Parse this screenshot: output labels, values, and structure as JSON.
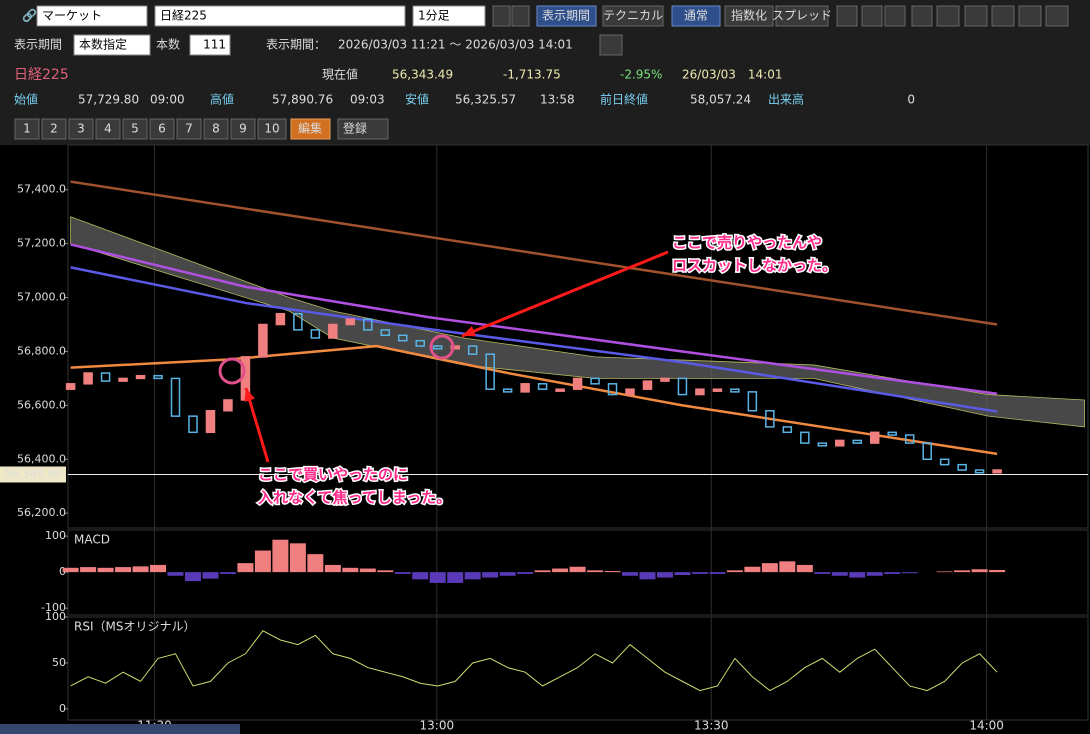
{
  "toolbar": {
    "market": "マーケット",
    "symbol": "日経225",
    "interval": "1分足",
    "buttons": [
      "表示期間",
      "テクニカル",
      "通常",
      "指数化",
      "スプレッド"
    ]
  },
  "period": {
    "label": "表示期間",
    "mode": "本数指定",
    "count_label": "本数",
    "count": 111,
    "range_label": "表示期間：",
    "range": "2026/03/03 11:21 ～ 2026/03/03 14:01"
  },
  "quote": {
    "name": "日経225",
    "current_label": "現在値",
    "current": "56,343.49",
    "change": "-1,713.75",
    "change_pct": "-2.95%",
    "time": "26/03/03　14:01",
    "open_label": "始値",
    "open": "57,729.80",
    "open_time": "09:00",
    "high_label": "高値",
    "high": "57,890.76",
    "high_time": "09:03",
    "low_label": "安値",
    "low": "56,325.57",
    "low_time": "13:58",
    "prev_label": "前日終値",
    "prev": "58,057.24",
    "volume_label": "出来高",
    "volume": "0"
  },
  "tabs": {
    "numbers": [
      "1",
      "2",
      "3",
      "4",
      "5",
      "6",
      "7",
      "8",
      "9",
      "10"
    ],
    "edit": "編集",
    "register": "登録"
  },
  "chart_data": {
    "type": "candlestick",
    "up_color": "#f08080",
    "down_color": "#5ab4e6",
    "x": [
      0,
      2,
      4,
      6,
      8,
      10,
      12,
      14,
      16,
      18,
      20,
      22,
      24,
      26,
      28,
      30,
      32,
      34,
      36,
      38,
      40,
      42,
      44,
      46,
      48,
      50,
      52,
      54,
      56,
      58,
      60,
      62,
      64,
      66,
      68,
      70,
      72,
      74,
      76,
      78,
      80,
      82,
      84,
      86,
      88,
      90,
      92,
      94,
      96,
      98,
      100,
      102,
      104,
      106
    ],
    "open": [
      56660,
      56680,
      56720,
      56690,
      56700,
      56710,
      56700,
      56560,
      56500,
      56580,
      56620,
      56780,
      56900,
      56940,
      56880,
      56850,
      56900,
      56920,
      56880,
      56860,
      56840,
      56820,
      56810,
      56820,
      56790,
      56660,
      56650,
      56680,
      56660,
      56660,
      56700,
      56680,
      56640,
      56660,
      56690,
      56700,
      56640,
      56660,
      56660,
      56650,
      56580,
      56520,
      56500,
      56460,
      56450,
      56470,
      56460,
      56500,
      56490,
      56460,
      56400,
      56380,
      56360,
      56350
    ],
    "close": [
      56680,
      56720,
      56690,
      56700,
      56710,
      56700,
      56560,
      56500,
      56580,
      56620,
      56780,
      56900,
      56940,
      56880,
      56850,
      56900,
      56920,
      56880,
      56860,
      56840,
      56820,
      56810,
      56820,
      56790,
      56660,
      56650,
      56680,
      56660,
      56660,
      56700,
      56680,
      56640,
      56660,
      56690,
      56700,
      56640,
      56660,
      56660,
      56650,
      56580,
      56520,
      56500,
      56460,
      56450,
      56470,
      56460,
      56500,
      56490,
      56460,
      56400,
      56380,
      56360,
      56350,
      56360
    ],
    "xlim": [
      -0.3,
      116.4
    ],
    "xticks": [
      {
        "value": 9.6,
        "label": "11:30"
      },
      {
        "value": 41.9,
        "label": "13:00"
      },
      {
        "value": 73.3,
        "label": "13:30"
      },
      {
        "value": 104.8,
        "label": "14:00"
      }
    ],
    "ylim": [
      56145,
      57566
    ],
    "yticks": [
      {
        "value": 56200,
        "label": "56,200.0"
      },
      {
        "value": 56400,
        "label": "56,400.0"
      },
      {
        "value": 56600,
        "label": "56,600.0"
      },
      {
        "value": 56800,
        "label": "56,800.0"
      },
      {
        "value": 57000,
        "label": "57,000.0"
      },
      {
        "value": 57200,
        "label": "57,200.0"
      },
      {
        "value": 57400,
        "label": "57,400.0"
      }
    ],
    "current_price": {
      "value": 56343.49,
      "label": "56,343.49"
    },
    "cloud": {
      "x": [
        0,
        25,
        30,
        45,
        60,
        85,
        105,
        116
      ],
      "upper": [
        57300,
        57000,
        56950,
        56850,
        56780,
        56750,
        56640,
        56620
      ],
      "lower": [
        57200,
        56950,
        56850,
        56750,
        56700,
        56700,
        56560,
        56520
      ],
      "color": "#666"
    },
    "lines": [
      {
        "color": "#a0522d",
        "x": [
          0,
          106
        ],
        "values": [
          57430,
          56900
        ]
      },
      {
        "color": "#5a5ae6",
        "x": [
          0,
          20,
          41,
          70,
          106
        ],
        "values": [
          57112,
          56980,
          56883,
          56760,
          56577
        ]
      },
      {
        "color": "#b050e0",
        "x": [
          0,
          20,
          41,
          70,
          106
        ],
        "values": [
          57197,
          57040,
          56927,
          56800,
          56643
        ]
      },
      {
        "color": "#f08a40",
        "x": [
          0,
          18,
          35,
          50,
          70,
          90,
          106
        ],
        "values": [
          56740,
          56770,
          56820,
          56720,
          56600,
          56500,
          56420
        ]
      }
    ],
    "macd": {
      "title": "MACD",
      "color": "#f08080",
      "neg_color": "#5a3ab8",
      "ylim": [
        -119,
        117
      ],
      "yticks": [
        -100,
        0,
        100
      ],
      "values": [
        12,
        14,
        12,
        14,
        16,
        20,
        -10,
        -25,
        -18,
        -5,
        25,
        60,
        90,
        80,
        50,
        20,
        12,
        10,
        5,
        -5,
        -20,
        -30,
        -30,
        -20,
        -15,
        -10,
        -5,
        5,
        10,
        15,
        5,
        3,
        -10,
        -20,
        -15,
        -8,
        -5,
        -5,
        5,
        15,
        25,
        30,
        20,
        -5,
        -10,
        -15,
        -10,
        -5,
        -3,
        0,
        2,
        5,
        8,
        6
      ]
    },
    "rsi": {
      "title": "RSI（MSオリジナル）",
      "color": "#c8e070",
      "ylim": [
        -12,
        100
      ],
      "yticks": [
        0,
        50,
        100
      ],
      "values": [
        25,
        35,
        28,
        40,
        30,
        55,
        60,
        25,
        30,
        50,
        60,
        85,
        75,
        70,
        80,
        60,
        55,
        45,
        40,
        35,
        28,
        25,
        30,
        50,
        55,
        45,
        40,
        25,
        35,
        45,
        60,
        50,
        70,
        55,
        40,
        30,
        20,
        25,
        55,
        35,
        20,
        30,
        45,
        55,
        40,
        55,
        65,
        45,
        25,
        20,
        30,
        50,
        60,
        40
      ]
    },
    "annotations": [
      {
        "lines": [
          "ここで売りやったんや",
          "ロスカットしなかった。"
        ]
      },
      {
        "lines": [
          "ここで買いやったのに",
          "入れなくて焦ってしまった。"
        ]
      }
    ]
  }
}
